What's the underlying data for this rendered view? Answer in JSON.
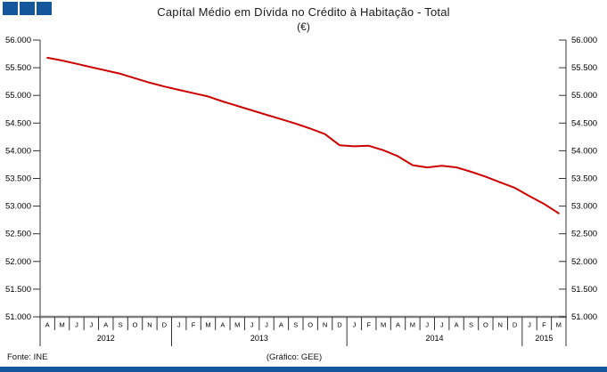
{
  "title": {
    "line1": "Capítal Médio em Dívida no Crédito à Habitação - Total",
    "line2": "(€)"
  },
  "footer": {
    "source": "Fonte: INE",
    "credit": "(Gráfico: GEE)"
  },
  "logo": {
    "color": "#15579c",
    "squares": 3
  },
  "bottom_bar_color": "#15579c",
  "chart_data": {
    "type": "line",
    "title": "Capítal Médio em Dívida no Crédito à Habitação - Total (€)",
    "unit": "€",
    "xlabel": "",
    "ylabel": "",
    "ylim": [
      51000,
      56000
    ],
    "y_tick_step": 500,
    "y_tick_labels": [
      "56.000",
      "55.500",
      "55.000",
      "54.500",
      "54.000",
      "53.500",
      "53.000",
      "52.500",
      "52.000",
      "51.500",
      "51.000"
    ],
    "grid": false,
    "legend": "none",
    "line_color": "#cc0000",
    "axis_color": "#333333",
    "baseline_color": "#808080",
    "x_months": [
      "A",
      "M",
      "J",
      "J",
      "A",
      "S",
      "O",
      "N",
      "D",
      "J",
      "F",
      "M",
      "A",
      "M",
      "J",
      "J",
      "A",
      "S",
      "O",
      "N",
      "D",
      "J",
      "F",
      "M",
      "A",
      "M",
      "J",
      "J",
      "A",
      "S",
      "O",
      "N",
      "D",
      "J",
      "F",
      "M"
    ],
    "years": [
      {
        "label": "2012",
        "months": 9
      },
      {
        "label": "2013",
        "months": 12
      },
      {
        "label": "2014",
        "months": 12
      },
      {
        "label": "2015",
        "months": 3
      }
    ],
    "series": [
      {
        "name": "Capital médio em dívida (€)",
        "color": "#cc0000",
        "values": [
          55680,
          55630,
          55570,
          55510,
          55450,
          55390,
          55310,
          55230,
          55160,
          55100,
          55040,
          54980,
          54890,
          54810,
          54730,
          54650,
          54570,
          54490,
          54400,
          54300,
          54100,
          54080,
          54090,
          54010,
          53900,
          53740,
          53700,
          53730,
          53700,
          53620,
          53530,
          53430,
          53330,
          53180,
          53040,
          52870
        ]
      }
    ]
  }
}
